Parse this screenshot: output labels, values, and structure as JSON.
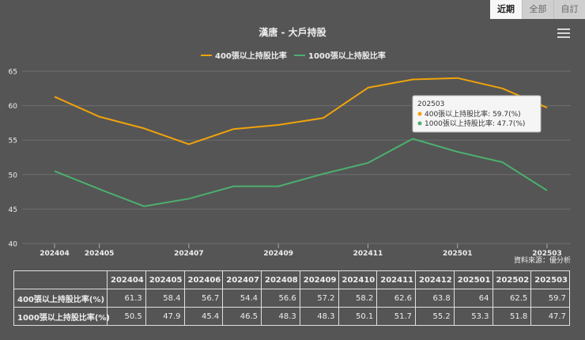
{
  "tabs": [
    {
      "label": "近期",
      "active": true
    },
    {
      "label": "全部",
      "active": false
    },
    {
      "label": "自訂",
      "active": false
    }
  ],
  "chart_data": {
    "type": "line",
    "title": "漢唐 - 大戶持股",
    "x": [
      "202404",
      "202405",
      "202406",
      "202407",
      "202408",
      "202409",
      "202410",
      "202411",
      "202412",
      "202501",
      "202502",
      "202503"
    ],
    "x_tick_labels": [
      "202404",
      "202405",
      "202407",
      "202409",
      "202411",
      "202501",
      "202503"
    ],
    "series": [
      {
        "name": "400張以上持股比率",
        "color": "#f0a30a",
        "values": [
          61.3,
          58.4,
          56.7,
          54.4,
          56.6,
          57.2,
          58.2,
          62.6,
          63.8,
          64,
          62.5,
          59.7
        ]
      },
      {
        "name": "1000張以上持股比率",
        "color": "#4caf6e",
        "values": [
          50.5,
          47.9,
          45.4,
          46.5,
          48.3,
          48.3,
          50.1,
          51.7,
          55.2,
          53.3,
          51.8,
          47.7
        ]
      }
    ],
    "ylim": [
      40,
      65
    ],
    "yticks": [
      40,
      45,
      50,
      55,
      60,
      65
    ],
    "grid": true,
    "legend": "top-center",
    "credit": "資料來源：優分析",
    "tooltip": {
      "header": "202503",
      "lines": [
        "400張以上持股比率: 59.7(%)",
        "1000張以上持股比率: 47.7(%)"
      ]
    }
  },
  "table": {
    "headers": [
      "",
      "202404",
      "202405",
      "202406",
      "202407",
      "202408",
      "202409",
      "202410",
      "202411",
      "202412",
      "202501",
      "202502",
      "202503"
    ],
    "rows": [
      {
        "label": "400張以上持股比率(%)",
        "values": [
          "61.3",
          "58.4",
          "56.7",
          "54.4",
          "56.6",
          "57.2",
          "58.2",
          "62.6",
          "63.8",
          "64",
          "62.5",
          "59.7"
        ]
      },
      {
        "label": "1000張以上持股比率(%)",
        "values": [
          "50.5",
          "47.9",
          "45.4",
          "46.5",
          "48.3",
          "48.3",
          "50.1",
          "51.7",
          "55.2",
          "53.3",
          "51.8",
          "47.7"
        ]
      }
    ]
  }
}
